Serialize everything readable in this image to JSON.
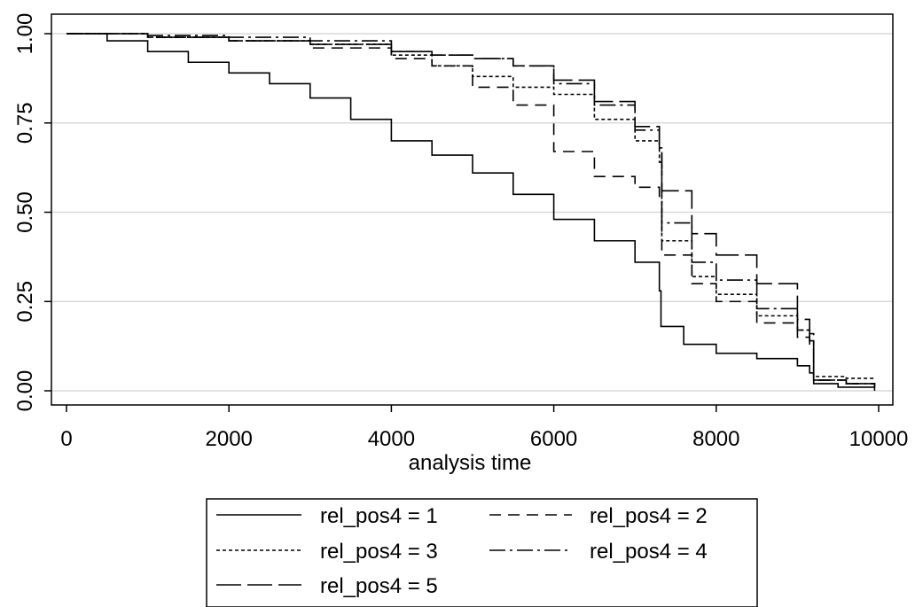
{
  "chart_data": {
    "type": "line",
    "title": "",
    "xlabel": "analysis time",
    "ylabel": "",
    "xlim": [
      0,
      10000
    ],
    "ylim": [
      0,
      1
    ],
    "x_ticks": [
      0,
      2000,
      4000,
      6000,
      8000,
      10000
    ],
    "y_ticks": [
      0.0,
      0.25,
      0.5,
      0.75,
      1.0
    ],
    "x_tick_labels": [
      "0",
      "2000",
      "4000",
      "6000",
      "8000",
      "10000"
    ],
    "y_tick_labels": [
      "0.00",
      "0.25",
      "0.50",
      "0.75",
      "1.00"
    ],
    "grid": "horizontal",
    "legend_position": "bottom",
    "series": [
      {
        "name": "rel_pos4 = 1",
        "dash": "",
        "points": [
          [
            0,
            1.0
          ],
          [
            500,
            0.98
          ],
          [
            1000,
            0.95
          ],
          [
            1500,
            0.92
          ],
          [
            2000,
            0.89
          ],
          [
            2500,
            0.86
          ],
          [
            3000,
            0.82
          ],
          [
            3500,
            0.76
          ],
          [
            4000,
            0.7
          ],
          [
            4500,
            0.66
          ],
          [
            5000,
            0.61
          ],
          [
            5500,
            0.55
          ],
          [
            6000,
            0.48
          ],
          [
            6500,
            0.42
          ],
          [
            7000,
            0.36
          ],
          [
            7300,
            0.28
          ],
          [
            7320,
            0.18
          ],
          [
            7600,
            0.13
          ],
          [
            8000,
            0.105
          ],
          [
            8500,
            0.09
          ],
          [
            9000,
            0.07
          ],
          [
            9150,
            0.05
          ],
          [
            9200,
            0.02
          ],
          [
            9500,
            0.01
          ],
          [
            9950,
            0.0
          ]
        ]
      },
      {
        "name": "rel_pos4 = 2",
        "dash": "13,8",
        "points": [
          [
            0,
            1.0
          ],
          [
            1000,
            0.99
          ],
          [
            2000,
            0.98
          ],
          [
            3000,
            0.96
          ],
          [
            4000,
            0.93
          ],
          [
            4500,
            0.91
          ],
          [
            5000,
            0.85
          ],
          [
            5500,
            0.8
          ],
          [
            6000,
            0.67
          ],
          [
            6500,
            0.6
          ],
          [
            7000,
            0.57
          ],
          [
            7300,
            0.54
          ],
          [
            7330,
            0.38
          ],
          [
            7700,
            0.3
          ],
          [
            8000,
            0.25
          ],
          [
            8500,
            0.19
          ],
          [
            9000,
            0.15
          ],
          [
            9150,
            0.12
          ],
          [
            9200,
            0.03
          ],
          [
            9600,
            0.02
          ],
          [
            9950,
            0.01
          ]
        ]
      },
      {
        "name": "rel_pos4 = 3",
        "dash": "4,3",
        "points": [
          [
            0,
            1.0
          ],
          [
            1000,
            0.99
          ],
          [
            2000,
            0.98
          ],
          [
            3000,
            0.97
          ],
          [
            4000,
            0.94
          ],
          [
            4500,
            0.91
          ],
          [
            5000,
            0.88
          ],
          [
            5500,
            0.85
          ],
          [
            6000,
            0.83
          ],
          [
            6500,
            0.76
          ],
          [
            7000,
            0.7
          ],
          [
            7300,
            0.64
          ],
          [
            7330,
            0.42
          ],
          [
            7700,
            0.32
          ],
          [
            8000,
            0.27
          ],
          [
            8500,
            0.21
          ],
          [
            9000,
            0.17
          ],
          [
            9150,
            0.14
          ],
          [
            9200,
            0.04
          ],
          [
            9600,
            0.035
          ],
          [
            9950,
            0.035
          ]
        ]
      },
      {
        "name": "rel_pos4 = 4",
        "dash": "18,5,3,5",
        "points": [
          [
            0,
            1.0
          ],
          [
            1000,
            0.995
          ],
          [
            2000,
            0.99
          ],
          [
            3000,
            0.98
          ],
          [
            4000,
            0.95
          ],
          [
            4500,
            0.94
          ],
          [
            5000,
            0.93
          ],
          [
            5500,
            0.91
          ],
          [
            6000,
            0.86
          ],
          [
            6500,
            0.8
          ],
          [
            7000,
            0.73
          ],
          [
            7300,
            0.68
          ],
          [
            7330,
            0.47
          ],
          [
            7700,
            0.36
          ],
          [
            8000,
            0.31
          ],
          [
            8500,
            0.23
          ],
          [
            9000,
            0.17
          ],
          [
            9150,
            0.14
          ],
          [
            9200,
            0.03
          ],
          [
            9600,
            0.02
          ],
          [
            9950,
            0.015
          ]
        ]
      },
      {
        "name": "rel_pos4 = 5",
        "dash": "28,7",
        "points": [
          [
            0,
            1.0
          ],
          [
            1000,
            0.99
          ],
          [
            2000,
            0.98
          ],
          [
            3000,
            0.97
          ],
          [
            4000,
            0.95
          ],
          [
            4500,
            0.94
          ],
          [
            5000,
            0.93
          ],
          [
            5500,
            0.91
          ],
          [
            6000,
            0.87
          ],
          [
            6500,
            0.81
          ],
          [
            7000,
            0.74
          ],
          [
            7300,
            0.68
          ],
          [
            7330,
            0.56
          ],
          [
            7700,
            0.44
          ],
          [
            8000,
            0.38
          ],
          [
            8500,
            0.3
          ],
          [
            9000,
            0.2
          ],
          [
            9150,
            0.16
          ],
          [
            9200,
            0.03
          ],
          [
            9600,
            0.02
          ],
          [
            9950,
            0.01
          ]
        ]
      }
    ]
  }
}
